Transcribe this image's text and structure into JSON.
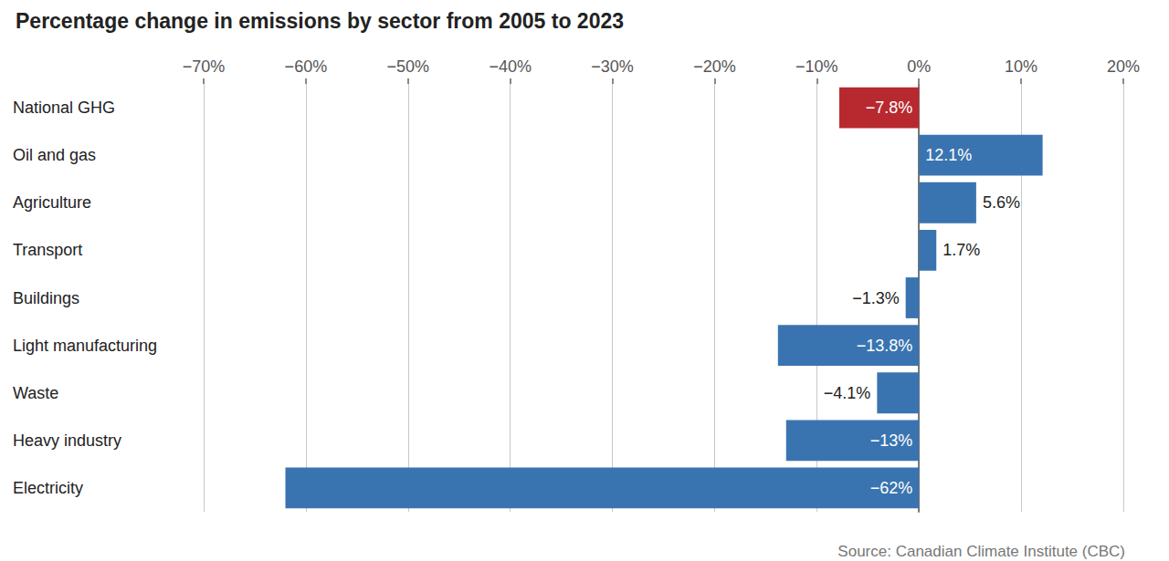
{
  "chart_data": {
    "type": "bar",
    "orientation": "horizontal",
    "title": "Percentage change in emissions by sector from 2005 to 2023",
    "source": "Source: Canadian Climate Institute (CBC)",
    "categories": [
      "National GHG",
      "Oil and gas",
      "Agriculture",
      "Transport",
      "Buildings",
      "Light manufacturing",
      "Waste",
      "Heavy industry",
      "Electricity"
    ],
    "values": [
      -7.8,
      12.1,
      5.6,
      1.7,
      -1.3,
      -13.8,
      -4.1,
      -13,
      -62
    ],
    "value_labels": [
      "−7.8%",
      "12.1%",
      "5.6%",
      "1.7%",
      "−1.3%",
      "−13.8%",
      "−4.1%",
      "−13%",
      "−62%"
    ],
    "colors": [
      "#b8292f",
      "#3a74b0",
      "#3a74b0",
      "#3a74b0",
      "#3a74b0",
      "#3a74b0",
      "#3a74b0",
      "#3a74b0",
      "#3a74b0"
    ],
    "xlim": [
      -70,
      20
    ],
    "xticks": [
      {
        "value": -70,
        "label": "−70%"
      },
      {
        "value": -60,
        "label": "−60%"
      },
      {
        "value": -50,
        "label": "−50%"
      },
      {
        "value": -40,
        "label": "−40%"
      },
      {
        "value": -30,
        "label": "−30%"
      },
      {
        "value": -20,
        "label": "−20%"
      },
      {
        "value": -10,
        "label": "−10%"
      },
      {
        "value": 0,
        "label": "0%"
      },
      {
        "value": 10,
        "label": "10%"
      },
      {
        "value": 20,
        "label": "20%"
      }
    ],
    "grid": true,
    "data_labels": true
  }
}
